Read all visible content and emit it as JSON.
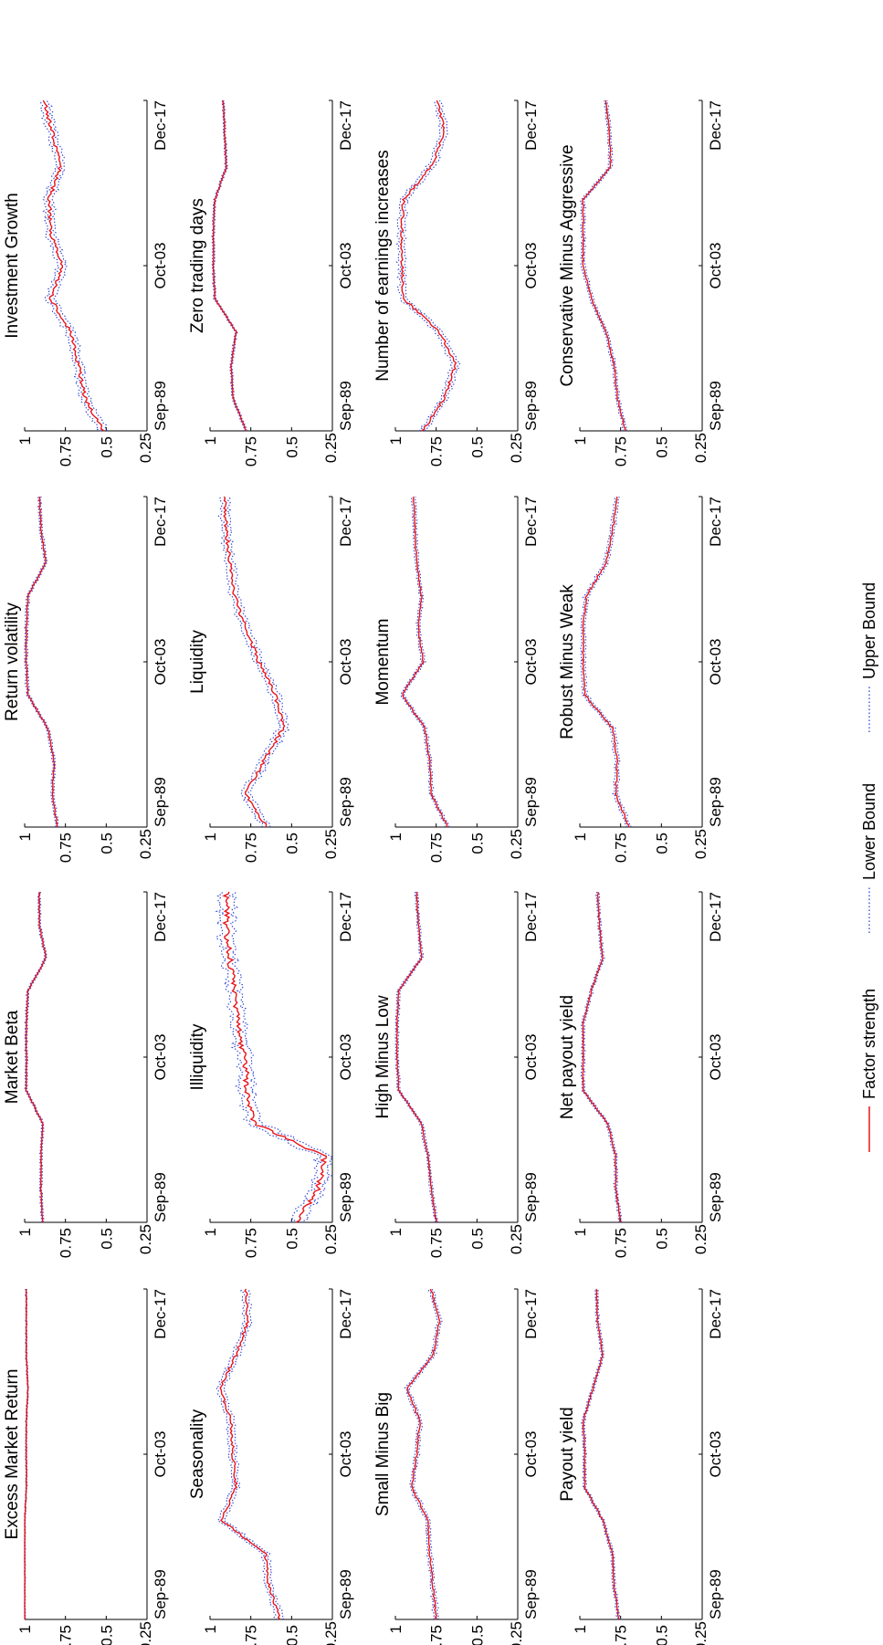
{
  "figure": {
    "legend": [
      {
        "label": "Factor strength",
        "color": "#e8141b",
        "style": "solid"
      },
      {
        "label": "Lower Bound",
        "color": "#2a46d6",
        "style": "dotted"
      },
      {
        "label": "Upper Bound",
        "color": "#2a46d6",
        "style": "dotted"
      }
    ]
  },
  "chart_data": [
    {
      "type": "line",
      "title": "Excess Market Return",
      "x_ticks": [
        "Sep-89",
        "Oct-03",
        "Dec-17"
      ],
      "ylim": [
        0.25,
        1
      ],
      "y_ticks": [
        "0.25",
        "0.5",
        "0.75",
        "1"
      ],
      "x": [
        0,
        0.1,
        0.2,
        0.3,
        0.4,
        0.5,
        0.6,
        0.7,
        0.8,
        0.9,
        1.0
      ],
      "series": [
        {
          "name": "Factor strength",
          "values": [
            1.0,
            1.0,
            1.0,
            1.0,
            0.99,
            0.99,
            0.99,
            0.98,
            0.99,
            0.99,
            0.99
          ],
          "band": 0.003
        }
      ]
    },
    {
      "type": "line",
      "title": "Market Beta",
      "x_ticks": [
        "Sep-89",
        "Oct-03",
        "Dec-17"
      ],
      "ylim": [
        0.25,
        1
      ],
      "y_ticks": [
        "0.25",
        "0.5",
        "0.75",
        "1"
      ],
      "x": [
        0,
        0.1,
        0.2,
        0.3,
        0.4,
        0.5,
        0.6,
        0.7,
        0.8,
        0.9,
        1.0
      ],
      "series": [
        {
          "name": "Factor strength",
          "values": [
            0.89,
            0.9,
            0.9,
            0.89,
            0.99,
            0.99,
            0.99,
            0.98,
            0.87,
            0.91,
            0.91
          ],
          "band": 0.006
        }
      ]
    },
    {
      "type": "line",
      "title": "Return volatility",
      "x_ticks": [
        "Sep-89",
        "Oct-03",
        "Dec-17"
      ],
      "ylim": [
        0.25,
        1
      ],
      "y_ticks": [
        "0.25",
        "0.5",
        "0.75",
        "1"
      ],
      "x": [
        0,
        0.1,
        0.2,
        0.3,
        0.4,
        0.5,
        0.6,
        0.7,
        0.8,
        0.9,
        1.0
      ],
      "series": [
        {
          "name": "Factor strength",
          "values": [
            0.8,
            0.83,
            0.82,
            0.86,
            0.98,
            0.99,
            0.99,
            0.98,
            0.87,
            0.9,
            0.91
          ],
          "band": 0.008
        }
      ]
    },
    {
      "type": "line",
      "title": "Investment Growth",
      "x_ticks": [
        "Sep-89",
        "Oct-03",
        "Dec-17"
      ],
      "ylim": [
        0.25,
        1
      ],
      "y_ticks": [
        "0.25",
        "0.5",
        "0.75",
        "1"
      ],
      "x": [
        0,
        0.1,
        0.2,
        0.3,
        0.4,
        0.5,
        0.6,
        0.7,
        0.8,
        0.9,
        1.0
      ],
      "series": [
        {
          "name": "Factor strength",
          "values": [
            0.52,
            0.63,
            0.67,
            0.72,
            0.84,
            0.77,
            0.84,
            0.85,
            0.78,
            0.83,
            0.88
          ],
          "band": 0.025
        }
      ]
    },
    {
      "type": "line",
      "title": "Seasonality",
      "x_ticks": [
        "Sep-89",
        "Oct-03",
        "Dec-17"
      ],
      "ylim": [
        0.25,
        1
      ],
      "y_ticks": [
        "0.25",
        "0.5",
        "0.75",
        "1"
      ],
      "x": [
        0,
        0.1,
        0.2,
        0.3,
        0.4,
        0.5,
        0.6,
        0.7,
        0.8,
        0.9,
        1.0
      ],
      "series": [
        {
          "name": "Factor strength",
          "values": [
            0.57,
            0.64,
            0.66,
            0.93,
            0.84,
            0.86,
            0.87,
            0.94,
            0.84,
            0.77,
            0.78
          ],
          "band": 0.02
        }
      ]
    },
    {
      "type": "line",
      "title": "Illiquidity",
      "x_ticks": [
        "Sep-89",
        "Oct-03",
        "Dec-17"
      ],
      "ylim": [
        0.25,
        1
      ],
      "y_ticks": [
        "0.25",
        "0.5",
        "0.75",
        "1"
      ],
      "x": [
        0,
        0.1,
        0.2,
        0.3,
        0.4,
        0.5,
        0.6,
        0.7,
        0.8,
        0.9,
        1.0
      ],
      "series": [
        {
          "name": "Factor strength",
          "values": [
            0.47,
            0.34,
            0.3,
            0.73,
            0.77,
            0.79,
            0.83,
            0.85,
            0.88,
            0.9,
            0.9
          ],
          "band": 0.04
        }
      ]
    },
    {
      "type": "line",
      "title": "Liquidity",
      "x_ticks": [
        "Sep-89",
        "Oct-03",
        "Dec-17"
      ],
      "ylim": [
        0.25,
        1
      ],
      "y_ticks": [
        "0.25",
        "0.5",
        "0.75",
        "1"
      ],
      "x": [
        0,
        0.1,
        0.2,
        0.3,
        0.4,
        0.5,
        0.6,
        0.7,
        0.8,
        0.9,
        1.0
      ],
      "series": [
        {
          "name": "Factor strength",
          "values": [
            0.65,
            0.78,
            0.67,
            0.55,
            0.6,
            0.7,
            0.78,
            0.85,
            0.88,
            0.9,
            0.91
          ],
          "band": 0.025
        }
      ]
    },
    {
      "type": "line",
      "title": "Zero trading days",
      "x_ticks": [
        "Sep-89",
        "Oct-03",
        "Dec-17"
      ],
      "ylim": [
        0.25,
        1
      ],
      "y_ticks": [
        "0.25",
        "0.5",
        "0.75",
        "1"
      ],
      "x": [
        0,
        0.1,
        0.2,
        0.3,
        0.4,
        0.5,
        0.6,
        0.7,
        0.8,
        0.9,
        1.0
      ],
      "series": [
        {
          "name": "Factor strength",
          "values": [
            0.78,
            0.86,
            0.87,
            0.84,
            0.97,
            0.98,
            0.98,
            0.97,
            0.9,
            0.91,
            0.92
          ],
          "band": 0.006
        }
      ]
    },
    {
      "type": "line",
      "title": "Small Minus Big",
      "x_ticks": [
        "Sep-89",
        "Oct-03",
        "Dec-17"
      ],
      "ylim": [
        0.25,
        1
      ],
      "y_ticks": [
        "0.25",
        "0.5",
        "0.75",
        "1"
      ],
      "x": [
        0,
        0.1,
        0.2,
        0.3,
        0.4,
        0.5,
        0.6,
        0.7,
        0.8,
        0.9,
        1.0
      ],
      "series": [
        {
          "name": "Factor strength",
          "values": [
            0.75,
            0.77,
            0.79,
            0.8,
            0.9,
            0.87,
            0.85,
            0.93,
            0.77,
            0.73,
            0.78
          ],
          "band": 0.012
        }
      ]
    },
    {
      "type": "line",
      "title": "High Minus Low",
      "x_ticks": [
        "Sep-89",
        "Oct-03",
        "Dec-17"
      ],
      "ylim": [
        0.25,
        1
      ],
      "y_ticks": [
        "0.25",
        "0.5",
        "0.75",
        "1"
      ],
      "x": [
        0,
        0.1,
        0.2,
        0.3,
        0.4,
        0.5,
        0.6,
        0.7,
        0.8,
        0.9,
        1.0
      ],
      "series": [
        {
          "name": "Factor strength",
          "values": [
            0.75,
            0.78,
            0.8,
            0.84,
            0.98,
            0.99,
            0.99,
            0.98,
            0.84,
            0.86,
            0.87
          ],
          "band": 0.008
        }
      ]
    },
    {
      "type": "line",
      "title": "Momentum",
      "x_ticks": [
        "Sep-89",
        "Oct-03",
        "Dec-17"
      ],
      "ylim": [
        0.25,
        1
      ],
      "y_ticks": [
        "0.25",
        "0.5",
        "0.75",
        "1"
      ],
      "x": [
        0,
        0.1,
        0.2,
        0.3,
        0.4,
        0.5,
        0.6,
        0.7,
        0.8,
        0.9,
        1.0
      ],
      "series": [
        {
          "name": "Factor strength",
          "values": [
            0.68,
            0.78,
            0.79,
            0.82,
            0.96,
            0.83,
            0.86,
            0.84,
            0.87,
            0.88,
            0.89
          ],
          "band": 0.01
        }
      ]
    },
    {
      "type": "line",
      "title": "Number of earnings increases",
      "x_ticks": [
        "Sep-89",
        "Oct-03",
        "Dec-17"
      ],
      "ylim": [
        0.25,
        1
      ],
      "y_ticks": [
        "0.25",
        "0.5",
        "0.75",
        "1"
      ],
      "x": [
        0,
        0.1,
        0.2,
        0.3,
        0.4,
        0.5,
        0.6,
        0.7,
        0.8,
        0.9,
        1.0
      ],
      "series": [
        {
          "name": "Factor strength",
          "values": [
            0.83,
            0.7,
            0.63,
            0.73,
            0.95,
            0.96,
            0.96,
            0.95,
            0.78,
            0.7,
            0.74
          ],
          "band": 0.02
        }
      ]
    },
    {
      "type": "line",
      "title": "Payout yield",
      "x_ticks": [
        "Sep-89",
        "Oct-03",
        "Dec-17"
      ],
      "ylim": [
        0.25,
        1
      ],
      "y_ticks": [
        "0.25",
        "0.5",
        "0.75",
        "1"
      ],
      "x": [
        0,
        0.1,
        0.2,
        0.3,
        0.4,
        0.5,
        0.6,
        0.7,
        0.8,
        0.9,
        1.0
      ],
      "series": [
        {
          "name": "Factor strength",
          "values": [
            0.76,
            0.79,
            0.8,
            0.86,
            0.97,
            0.97,
            0.98,
            0.92,
            0.86,
            0.89,
            0.9
          ],
          "band": 0.008
        }
      ]
    },
    {
      "type": "line",
      "title": "Net payout yield",
      "x_ticks": [
        "Sep-89",
        "Oct-03",
        "Dec-17"
      ],
      "ylim": [
        0.25,
        1
      ],
      "y_ticks": [
        "0.25",
        "0.5",
        "0.75",
        "1"
      ],
      "x": [
        0,
        0.1,
        0.2,
        0.3,
        0.4,
        0.5,
        0.6,
        0.7,
        0.8,
        0.9,
        1.0
      ],
      "series": [
        {
          "name": "Factor strength",
          "values": [
            0.75,
            0.78,
            0.78,
            0.83,
            0.98,
            0.98,
            0.98,
            0.93,
            0.86,
            0.88,
            0.89
          ],
          "band": 0.008
        }
      ]
    },
    {
      "type": "line",
      "title": "Robust Minus Weak",
      "x_ticks": [
        "Sep-89",
        "Oct-03",
        "Dec-17"
      ],
      "ylim": [
        0.25,
        1
      ],
      "y_ticks": [
        "0.25",
        "0.5",
        "0.75",
        "1"
      ],
      "x": [
        0,
        0.1,
        0.2,
        0.3,
        0.4,
        0.5,
        0.6,
        0.7,
        0.8,
        0.9,
        1.0
      ],
      "series": [
        {
          "name": "Factor strength",
          "values": [
            0.7,
            0.78,
            0.77,
            0.8,
            0.97,
            0.98,
            0.98,
            0.96,
            0.84,
            0.8,
            0.77
          ],
          "band": 0.012
        }
      ]
    },
    {
      "type": "line",
      "title": "Conservative Minus Aggressive",
      "x_ticks": [
        "Sep-89",
        "Oct-03",
        "Dec-17"
      ],
      "ylim": [
        0.25,
        1
      ],
      "y_ticks": [
        "0.25",
        "0.5",
        "0.75",
        "1"
      ],
      "x": [
        0,
        0.1,
        0.2,
        0.3,
        0.4,
        0.5,
        0.6,
        0.7,
        0.8,
        0.9,
        1.0
      ],
      "series": [
        {
          "name": "Factor strength",
          "values": [
            0.72,
            0.77,
            0.79,
            0.84,
            0.93,
            0.98,
            0.98,
            0.98,
            0.81,
            0.82,
            0.84
          ],
          "band": 0.01
        }
      ]
    }
  ]
}
